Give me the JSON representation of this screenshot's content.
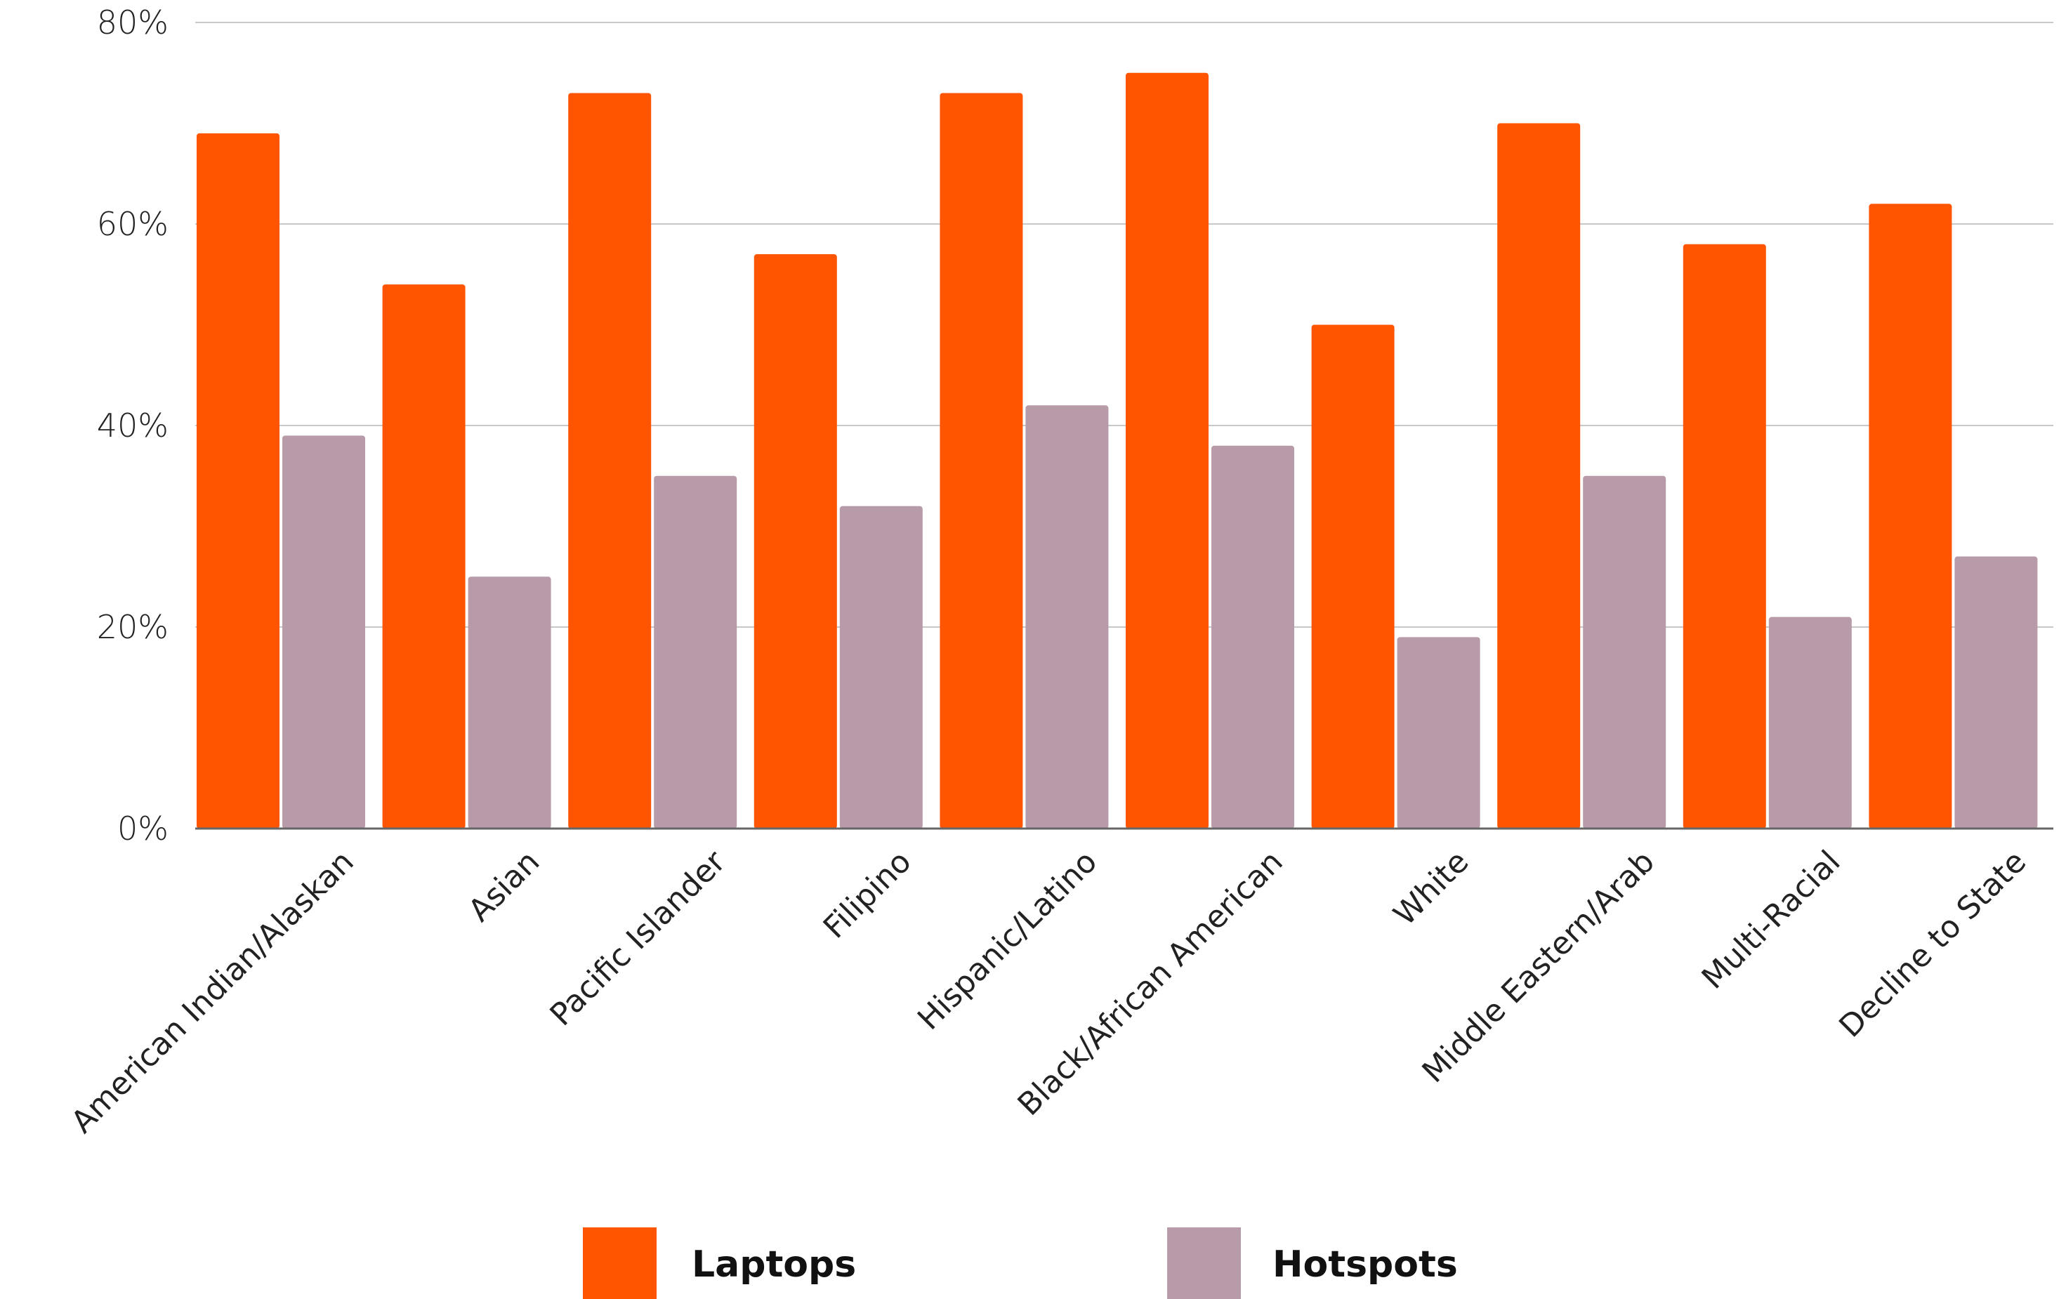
{
  "chart_data": {
    "type": "bar",
    "title": "",
    "xlabel": "",
    "ylabel": "",
    "ylim": [
      0,
      80
    ],
    "yticks": [
      0,
      20,
      40,
      60,
      80
    ],
    "ytick_labels": [
      "0%",
      "20%",
      "40%",
      "60%",
      "80%"
    ],
    "grid": true,
    "legend_position": "bottom",
    "categories": [
      "American Indian/Alaskan",
      "Asian",
      "Pacific Islander",
      "Filipino",
      "Hispanic/Latino",
      "Black/African American",
      "White",
      "Middle Eastern/Arab",
      "Multi-Racial",
      "Decline to State"
    ],
    "series": [
      {
        "name": "Laptops",
        "color": "#FF5500",
        "values": [
          69,
          54,
          73,
          57,
          73,
          75,
          50,
          70,
          58,
          62
        ]
      },
      {
        "name": "Hotspots",
        "color": "#B79BA8",
        "values": [
          39,
          25,
          35,
          32,
          42,
          38,
          19,
          35,
          21,
          27
        ]
      }
    ]
  }
}
